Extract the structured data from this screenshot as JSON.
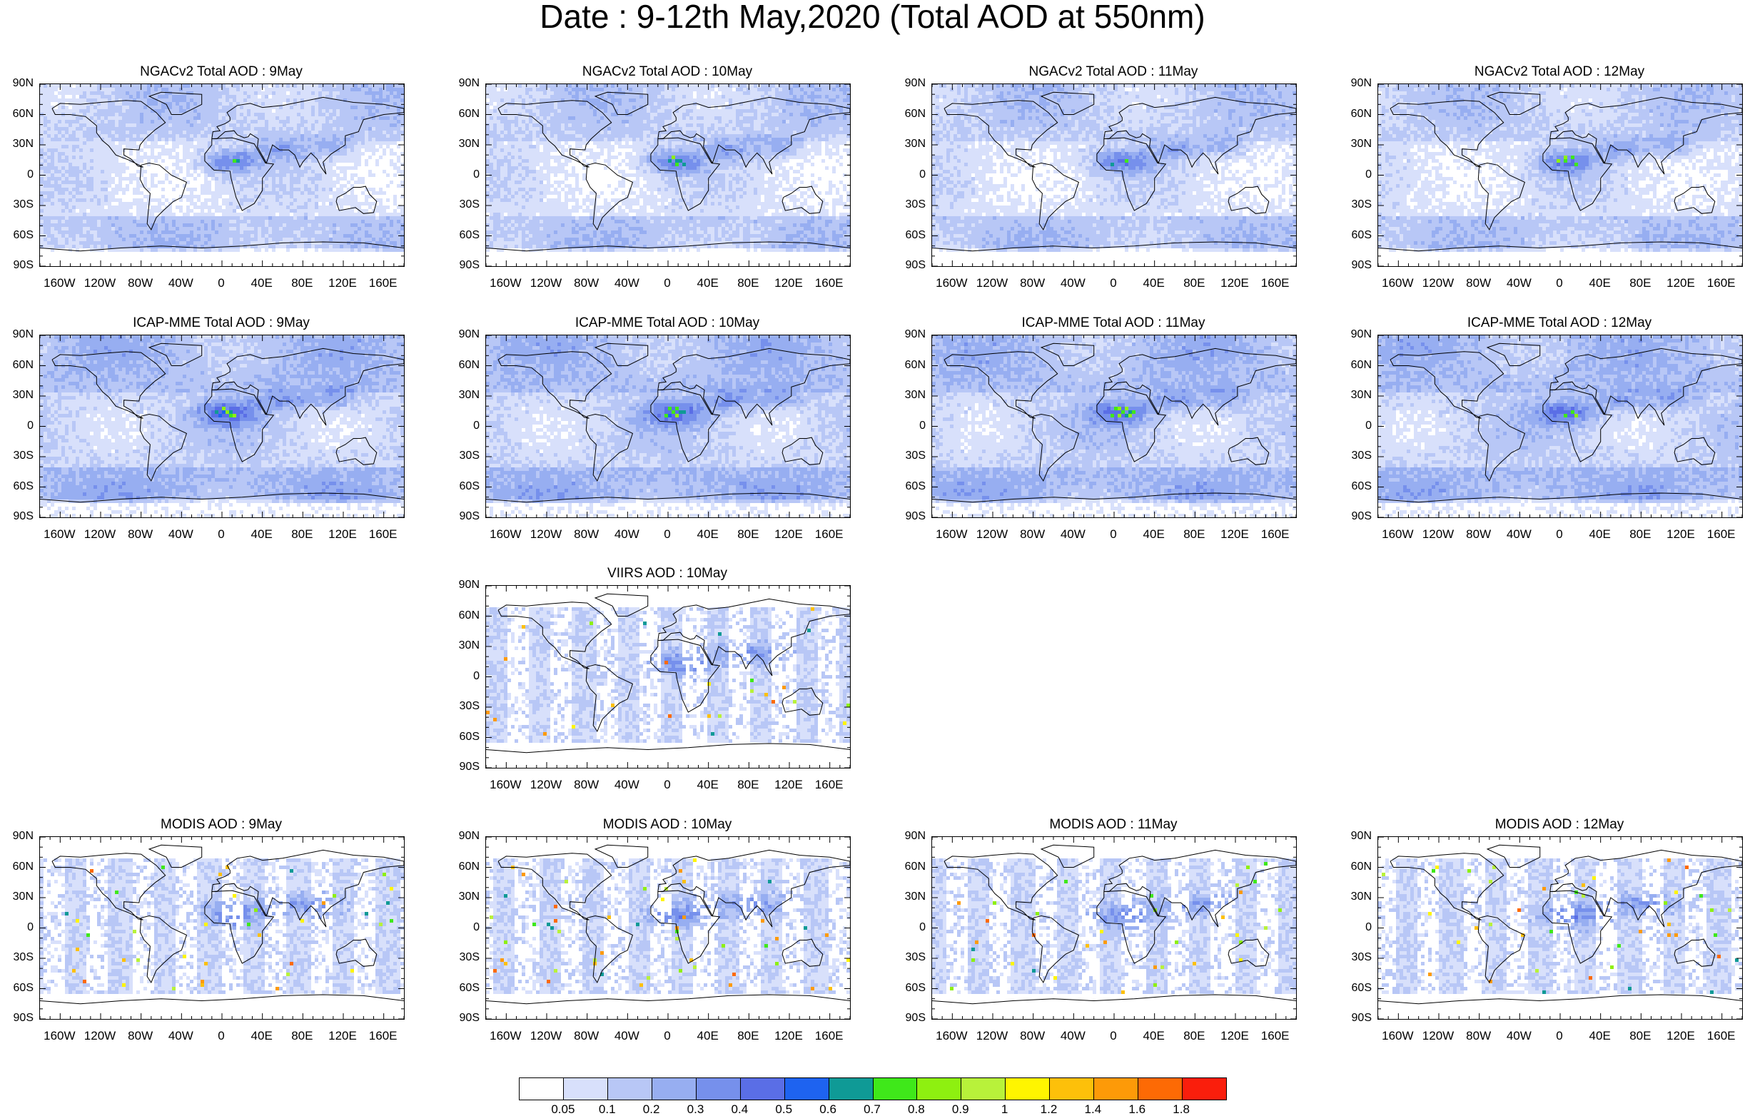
{
  "title": "Date : 9-12th May,2020 (Total AOD at 550nm)",
  "lat_labels": [
    "90N",
    "60N",
    "30N",
    "0",
    "30S",
    "60S",
    "90S"
  ],
  "lon_labels": [
    "160W",
    "120W",
    "80W",
    "40W",
    "0",
    "40E",
    "80E",
    "120E",
    "160E"
  ],
  "lon_values": [
    -160,
    -120,
    -80,
    -40,
    0,
    40,
    80,
    120,
    160
  ],
  "panels": [
    {
      "id": "ngac-9",
      "title": "NGACv2 Total AOD : 9May",
      "row": 0,
      "col": 0,
      "kind": "model"
    },
    {
      "id": "ngac-10",
      "title": "NGACv2 Total AOD : 10May",
      "row": 0,
      "col": 1,
      "kind": "model"
    },
    {
      "id": "ngac-11",
      "title": "NGACv2 Total AOD : 11May",
      "row": 0,
      "col": 2,
      "kind": "model"
    },
    {
      "id": "ngac-12",
      "title": "NGACv2 Total AOD : 12May",
      "row": 0,
      "col": 3,
      "kind": "model"
    },
    {
      "id": "icap-9",
      "title": "ICAP-MME Total AOD : 9May",
      "row": 1,
      "col": 0,
      "kind": "model"
    },
    {
      "id": "icap-10",
      "title": "ICAP-MME Total AOD : 10May",
      "row": 1,
      "col": 1,
      "kind": "model"
    },
    {
      "id": "icap-11",
      "title": "ICAP-MME Total AOD : 11May",
      "row": 1,
      "col": 2,
      "kind": "model"
    },
    {
      "id": "icap-12",
      "title": "ICAP-MME Total AOD : 12May",
      "row": 1,
      "col": 3,
      "kind": "model"
    },
    {
      "id": "viirs-10",
      "title": "VIIRS AOD : 10May",
      "row": 2,
      "col": 1,
      "kind": "satellite"
    },
    {
      "id": "modis-9",
      "title": "MODIS AOD : 9May",
      "row": 3,
      "col": 0,
      "kind": "satellite"
    },
    {
      "id": "modis-10",
      "title": "MODIS AOD : 10May",
      "row": 3,
      "col": 1,
      "kind": "satellite"
    },
    {
      "id": "modis-11",
      "title": "MODIS AOD : 11May",
      "row": 3,
      "col": 2,
      "kind": "satellite"
    },
    {
      "id": "modis-12",
      "title": "MODIS AOD : 12May",
      "row": 3,
      "col": 3,
      "kind": "satellite"
    }
  ],
  "colorbar": {
    "labels": [
      "0.05",
      "0.1",
      "0.2",
      "0.3",
      "0.4",
      "0.5",
      "0.6",
      "0.7",
      "0.8",
      "0.9",
      "1",
      "1.2",
      "1.4",
      "1.6",
      "1.8"
    ],
    "colors": [
      "#ffffff",
      "#d8e0fb",
      "#b8c7f6",
      "#97aef1",
      "#7690ec",
      "#5a6ee6",
      "#1e63f0",
      "#0f9a96",
      "#3fe81a",
      "#8ef010",
      "#b8f23a",
      "#fff500",
      "#fdc00a",
      "#fd9a08",
      "#fd6a05",
      "#fa1e0c"
    ]
  }
}
